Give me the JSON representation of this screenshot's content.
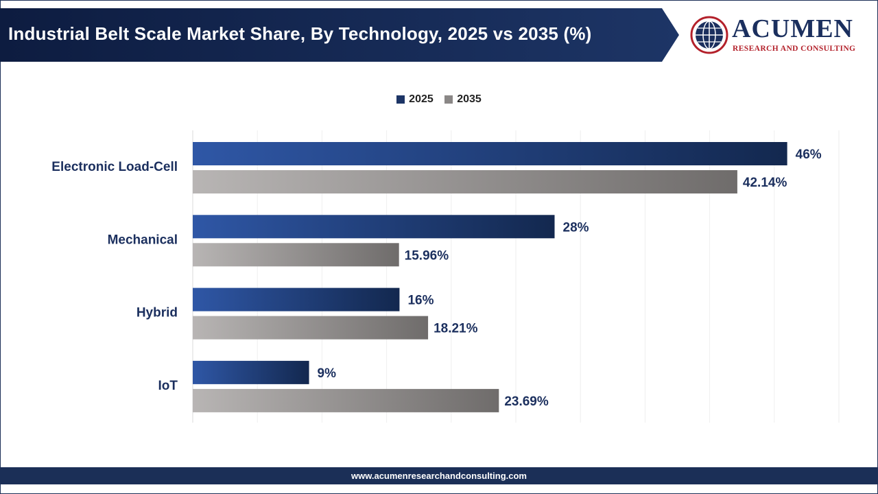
{
  "header": {
    "title": "Industrial Belt Scale Market Share, By Technology, 2025 vs 2035 (%)"
  },
  "logo": {
    "name": "ACUMEN",
    "tagline": "RESEARCH AND CONSULTING",
    "icon": "globe-icon"
  },
  "colors": {
    "header_navy": "#0f1f45",
    "series_2025_start": "#2f57a6",
    "series_2025_end": "#13284f",
    "series_2035_start": "#b8b5b4",
    "series_2035_end": "#6f6c6b",
    "label_color": "#1b2f5e"
  },
  "legend": {
    "position": "top-center",
    "items": [
      {
        "label": "2025",
        "color": "#1d3566"
      },
      {
        "label": "2035",
        "color": "#8a8786"
      }
    ]
  },
  "chart_data": {
    "type": "bar",
    "orientation": "horizontal",
    "title": "Industrial Belt Scale Market Share, By Technology, 2025 vs 2035 (%)",
    "categories": [
      "Electronic Load-Cell",
      "Mechanical",
      "Hybrid",
      "IoT"
    ],
    "series": [
      {
        "name": "2025",
        "values": [
          46,
          28,
          16,
          9
        ],
        "labels": [
          "46%",
          "28%",
          "16%",
          "9%"
        ]
      },
      {
        "name": "2035",
        "values": [
          42.14,
          15.96,
          18.21,
          23.69
        ],
        "labels": [
          "42.14%",
          "15.96%",
          "18.21%",
          "23.69%"
        ]
      }
    ],
    "xlim": [
      0,
      50
    ],
    "grid": true,
    "legend": "top-center"
  },
  "footer": {
    "url": "www.acumenresearchandconsulting.com"
  }
}
